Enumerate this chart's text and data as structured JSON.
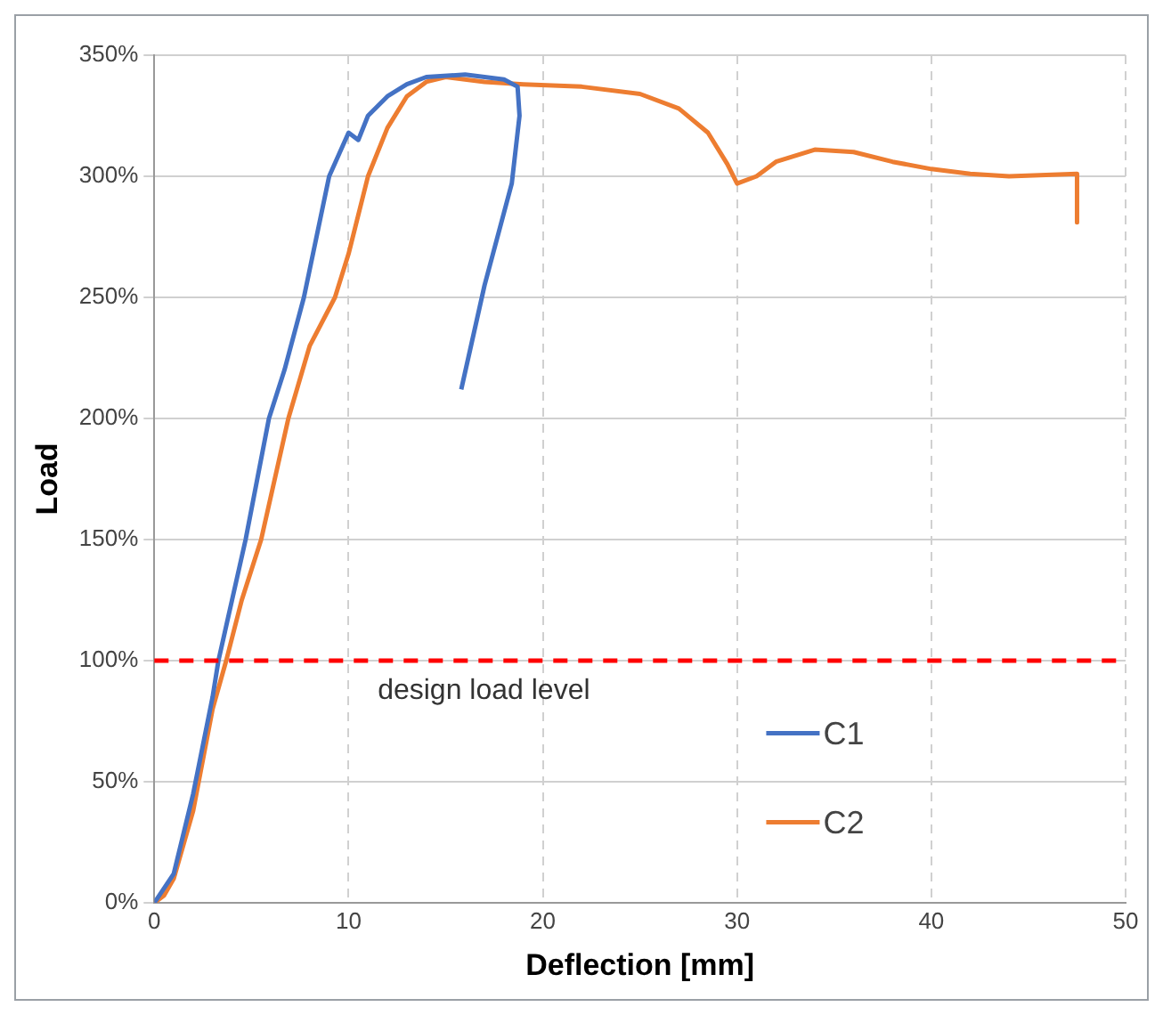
{
  "chart_data": {
    "type": "line",
    "xlabel": "Deflection [mm]",
    "ylabel": "Load",
    "xlim": [
      0,
      50
    ],
    "xticks": [
      0,
      10,
      20,
      30,
      40,
      50
    ],
    "ylim": [
      0,
      350
    ],
    "yticks": [
      {
        "value": 0,
        "label": "0%"
      },
      {
        "value": 50,
        "label": "50%"
      },
      {
        "value": 100,
        "label": "100%"
      },
      {
        "value": 150,
        "label": "150%"
      },
      {
        "value": 200,
        "label": "200%"
      },
      {
        "value": 250,
        "label": "250%"
      },
      {
        "value": 300,
        "label": "300%"
      },
      {
        "value": 350,
        "label": "350%"
      }
    ],
    "grid": true,
    "legend": "bottom right",
    "marker": "none",
    "line_style": "solid",
    "ref_lines": [
      {
        "axis": "y",
        "value": 100,
        "label": "design load level",
        "color": "#ff0000",
        "line_style": "dashed"
      }
    ],
    "series": [
      {
        "name": "C1",
        "color": "#4472c4",
        "x": [
          0,
          1,
          2,
          3,
          3.3,
          4,
          4.7,
          5.3,
          5.9,
          6.7,
          7.7,
          9,
          10,
          10.5,
          11,
          12,
          13,
          14,
          16,
          17,
          18,
          18.7,
          18.8,
          18.4,
          17,
          15.8
        ],
        "values": [
          0,
          12,
          45,
          85,
          100,
          125,
          150,
          175,
          200,
          220,
          250,
          300,
          318,
          315,
          325,
          333,
          338,
          341,
          342,
          341,
          340,
          337,
          325,
          297,
          255,
          212
        ]
      },
      {
        "name": "C2",
        "color": "#ed7d31",
        "x": [
          0,
          0.5,
          1,
          2,
          3,
          3.7,
          4.5,
          5.5,
          6.9,
          8,
          9.3,
          10,
          11,
          12,
          13,
          14,
          15,
          17,
          19,
          22,
          25,
          27,
          28.5,
          29.5,
          30,
          31,
          32,
          34,
          36,
          38,
          40,
          42,
          44,
          47.5,
          47.5
        ],
        "values": [
          0,
          3,
          10,
          38,
          80,
          100,
          125,
          150,
          200,
          230,
          250,
          268,
          300,
          320,
          333,
          339,
          341,
          339,
          338,
          337,
          334,
          328,
          318,
          305,
          297,
          300,
          306,
          311,
          310,
          306,
          303,
          301,
          300,
          301,
          281
        ]
      }
    ]
  }
}
